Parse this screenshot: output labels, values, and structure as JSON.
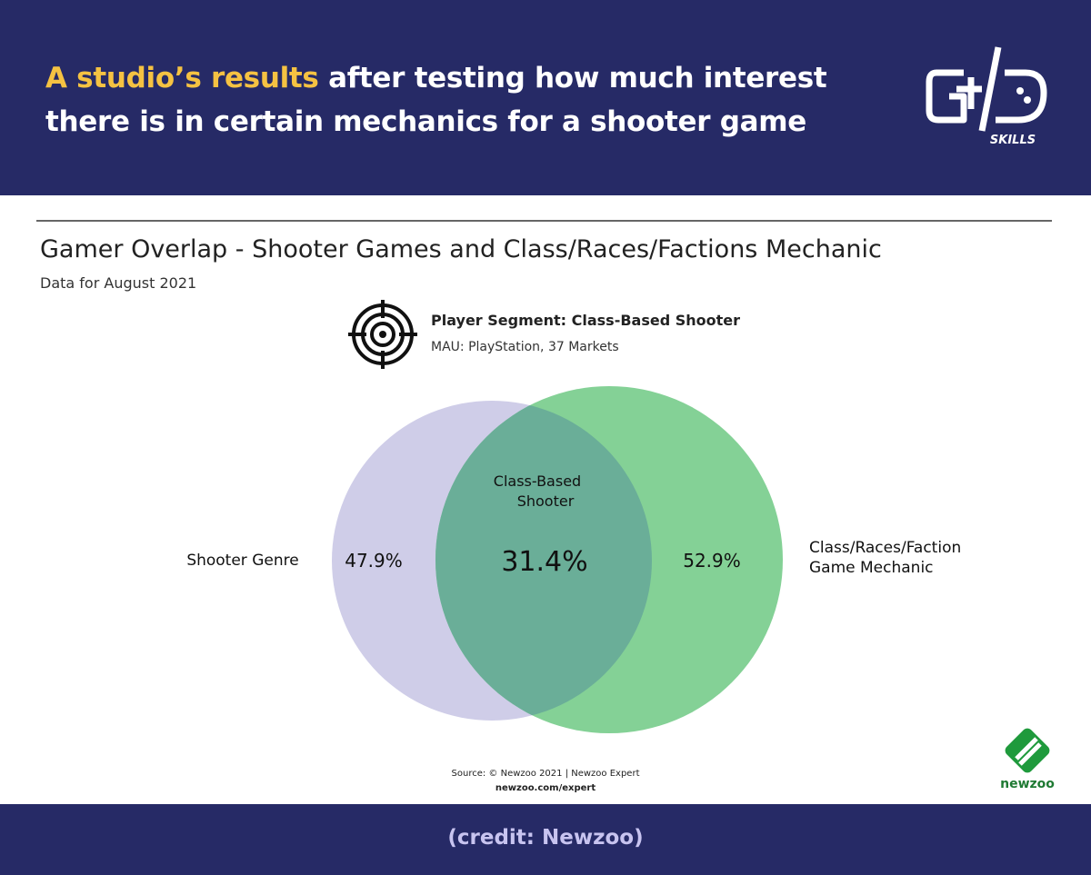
{
  "header": {
    "title_highlight": "A studio’s results",
    "title_lines": [
      "after testing how much interest",
      "there is in certain mechanics for a shooter game"
    ],
    "logo_text": "SKILLS"
  },
  "chart": {
    "title": "Gamer Overlap - Shooter Games and Class/Races/Factions Mechanic",
    "subtitle": "Data for August 2021",
    "segment": {
      "title": "Player Segment: Class-Based Shooter",
      "detail": "MAU: PlayStation, 37 Markets"
    },
    "venn": {
      "left": {
        "label": "Shooter Genre",
        "value": "47.9%"
      },
      "right": {
        "label_lines": [
          "Class/Races/Faction",
          "Game Mechanic"
        ],
        "value": "52.9%"
      },
      "overlap": {
        "label_lines": [
          "Class-Based",
          "Shooter"
        ],
        "value": "31.4%"
      }
    },
    "source": [
      "Source: © Newzoo 2021 | Newzoo Expert",
      "newzoo.com/expert"
    ],
    "brand": "newzoo"
  },
  "footer": {
    "credit": "(credit: Newzoo)"
  }
}
